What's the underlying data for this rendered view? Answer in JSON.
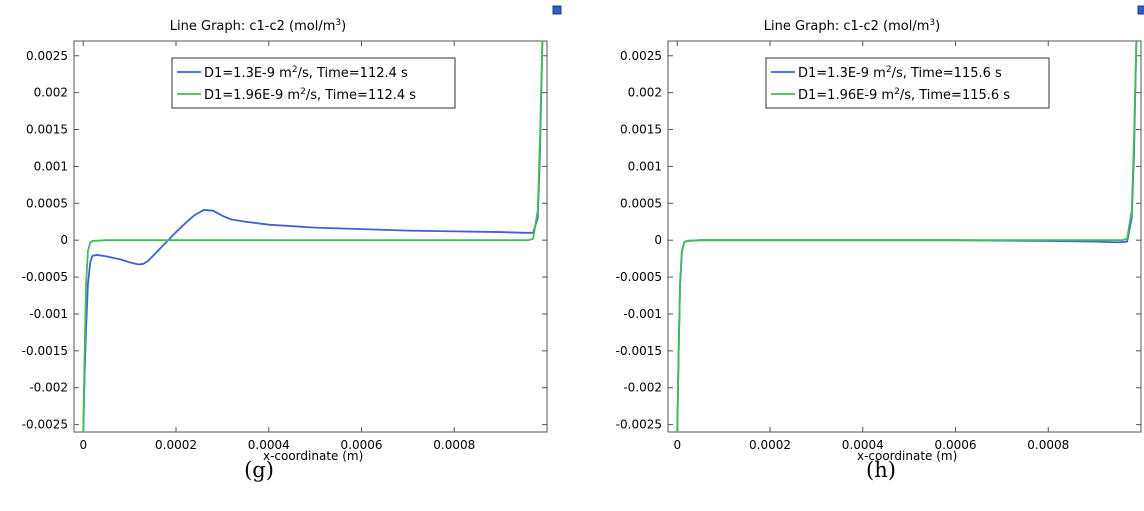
{
  "chart_data": [
    {
      "type": "line",
      "title": "Line Graph: c1-c2 (mol/m",
      "title_sup": "3",
      "title_end": ")",
      "xlabel": "x-coordinate (m)",
      "ylabel": "",
      "xlim": [
        -2e-05,
        0.001
      ],
      "ylim": [
        -0.0026,
        0.0027
      ],
      "xticks": [
        0,
        0.0002,
        0.0004,
        0.0006,
        0.0008
      ],
      "xtick_labels": [
        "0",
        "0.0002",
        "0.0004",
        "0.0006",
        "0.0008"
      ],
      "yticks": [
        0.0025,
        0.002,
        0.0015,
        0.001,
        0.0005,
        0,
        -0.0005,
        -0.001,
        -0.0015,
        -0.002,
        -0.0025
      ],
      "ytick_labels": [
        "0.0025",
        "0.002",
        "0.0015",
        "0.001",
        "0.0005",
        "0",
        "-0.0005",
        "-0.001",
        "-0.0015",
        "-0.002",
        "-0.0025"
      ],
      "grid": false,
      "legend_position": "top-center",
      "panel_label": "g",
      "series": [
        {
          "name": "D1=1.3E-9 m2/s, Time=112.4 s",
          "legend_parts": [
            "D1=1.3E-9 m",
            "2",
            "/s, Time=112.4 s"
          ],
          "color": "#4060d8",
          "x": [
            0,
            3e-06,
            6e-06,
            1e-05,
            1.5e-05,
            2e-05,
            3e-05,
            5e-05,
            8e-05,
            0.0001,
            0.00012,
            0.00013,
            0.00014,
            0.00016,
            0.00018,
            0.0002,
            0.00022,
            0.00024,
            0.00026,
            0.00028,
            0.0003,
            0.00032,
            0.00035,
            0.0004,
            0.0005,
            0.0006,
            0.0007,
            0.0008,
            0.0009,
            0.00095,
            0.00097,
            0.00098,
            0.000985,
            0.00099
          ],
          "y": [
            -0.0026,
            -0.0018,
            -0.0012,
            -0.0006,
            -0.0003,
            -0.00021,
            -0.0002,
            -0.00022,
            -0.00026,
            -0.0003,
            -0.00033,
            -0.00032,
            -0.00028,
            -0.00015,
            -2e-05,
            0.00011,
            0.00023,
            0.00034,
            0.00041,
            0.0004,
            0.00033,
            0.00028,
            0.00025,
            0.00021,
            0.00017,
            0.00015,
            0.00013,
            0.00012,
            0.00011,
            0.0001,
            0.0001,
            0.0003,
            0.0012,
            0.0027
          ]
        },
        {
          "name": "D1=1.96E-9 m2/s, Time=112.4 s",
          "legend_parts": [
            "D1=1.96E-9 m",
            "2",
            "/s, Time=112.4 s"
          ],
          "color": "#44bb55",
          "x": [
            0,
            3e-06,
            6e-06,
            1e-05,
            1.5e-05,
            2e-05,
            5e-05,
            0.0002,
            0.0004,
            0.0006,
            0.0008,
            0.0009,
            0.00096,
            0.00097,
            0.00098,
            0.000985,
            0.00099
          ],
          "y": [
            -0.0026,
            -0.0015,
            -0.0006,
            -0.00015,
            -3e-05,
            -1e-05,
            0,
            0,
            0,
            0,
            0,
            0,
            0,
            2e-05,
            0.0004,
            0.0014,
            0.0027
          ]
        }
      ]
    },
    {
      "type": "line",
      "title": "Line Graph: c1-c2 (mol/m",
      "title_sup": "3",
      "title_end": ")",
      "xlabel": "x-coordinate (m)",
      "ylabel": "",
      "xlim": [
        -2e-05,
        0.001
      ],
      "ylim": [
        -0.0026,
        0.0027
      ],
      "xticks": [
        0,
        0.0002,
        0.0004,
        0.0006,
        0.0008
      ],
      "xtick_labels": [
        "0",
        "0.0002",
        "0.0004",
        "0.0006",
        "0.0008"
      ],
      "yticks": [
        0.0025,
        0.002,
        0.0015,
        0.001,
        0.0005,
        0,
        -0.0005,
        -0.001,
        -0.0015,
        -0.002,
        -0.0025
      ],
      "ytick_labels": [
        "0.0025",
        "0.002",
        "0.0015",
        "0.001",
        "0.0005",
        "0",
        "-0.0005",
        "-0.001",
        "-0.0015",
        "-0.002",
        "-0.0025"
      ],
      "grid": false,
      "legend_position": "top-center",
      "panel_label": "h",
      "series": [
        {
          "name": "D1=1.3E-9 m2/s, Time=115.6 s",
          "legend_parts": [
            "D1=1.3E-9 m",
            "2",
            "/s, Time=115.6 s"
          ],
          "color": "#4060d8",
          "x": [
            0,
            3e-06,
            6e-06,
            1e-05,
            1.5e-05,
            2e-05,
            5e-05,
            0.0002,
            0.0004,
            0.0006,
            0.0008,
            0.0009,
            0.00095,
            0.00097,
            0.00098,
            0.000985,
            0.00099
          ],
          "y": [
            -0.0026,
            -0.0015,
            -0.0006,
            -0.00015,
            -3e-05,
            -1e-05,
            0,
            0,
            0,
            0,
            -1e-05,
            -2e-05,
            -3e-05,
            -2e-05,
            0.0003,
            0.0012,
            0.0027
          ]
        },
        {
          "name": "D1=1.96E-9 m2/s, Time=115.6 s",
          "legend_parts": [
            "D1=1.96E-9 m",
            "2",
            "/s, Time=115.6 s"
          ],
          "color": "#44bb55",
          "x": [
            0,
            3e-06,
            6e-06,
            1e-05,
            1.5e-05,
            2e-05,
            5e-05,
            0.0002,
            0.0004,
            0.0006,
            0.0008,
            0.0009,
            0.00096,
            0.00097,
            0.00098,
            0.000985,
            0.00099
          ],
          "y": [
            -0.0026,
            -0.0015,
            -0.0006,
            -0.00015,
            -3e-05,
            -1e-05,
            0,
            0,
            0,
            0,
            0,
            0,
            0,
            2e-05,
            0.0004,
            0.0014,
            0.0027
          ]
        }
      ]
    }
  ],
  "panel_labels": [
    "(g)",
    "(h)"
  ]
}
